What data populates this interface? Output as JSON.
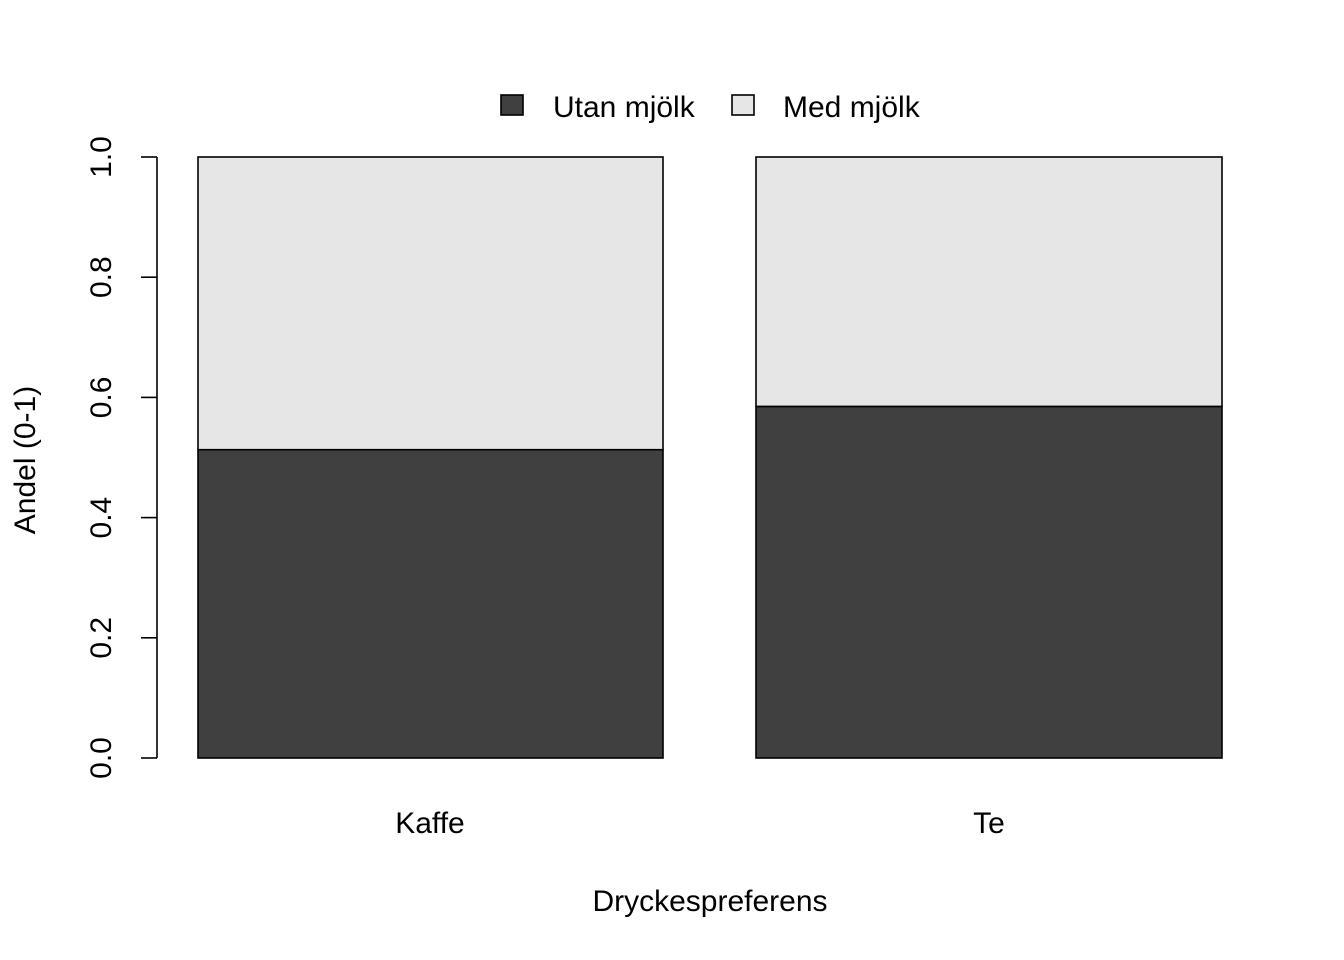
{
  "chart_data": {
    "type": "bar",
    "stacked": true,
    "title": "",
    "xlabel": "Dryckespreferens",
    "ylabel": "Andel (0-1)",
    "ylim": [
      0,
      1
    ],
    "yticks": [
      "0.0",
      "0.2",
      "0.4",
      "0.6",
      "0.8",
      "1.0"
    ],
    "categories": [
      "Kaffe",
      "Te"
    ],
    "series": [
      {
        "name": "Utan mjölk",
        "values": [
          0.513,
          0.585
        ],
        "color": "#404040"
      },
      {
        "name": "Med mjölk",
        "values": [
          0.487,
          0.415
        ],
        "color": "#e6e6e6"
      }
    ],
    "legend": {
      "placement": "top-center"
    },
    "grid": false
  }
}
